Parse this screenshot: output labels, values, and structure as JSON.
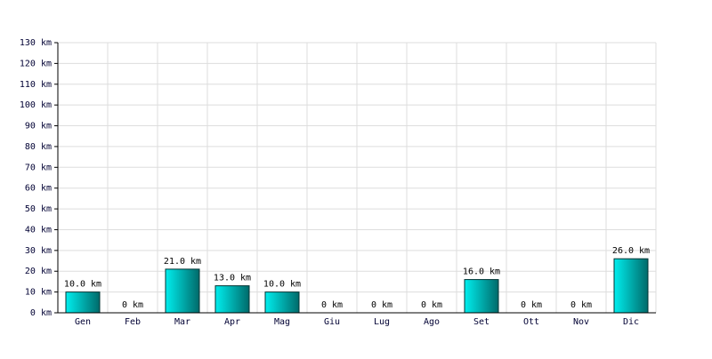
{
  "chart_data": {
    "type": "bar",
    "categories": [
      "Gen",
      "Feb",
      "Mar",
      "Apr",
      "Mag",
      "Giu",
      "Lug",
      "Ago",
      "Set",
      "Ott",
      "Nov",
      "Dic"
    ],
    "values": [
      10,
      0,
      21,
      13,
      10,
      0,
      0,
      0,
      16,
      0,
      0,
      26
    ],
    "value_labels": [
      "10.0 km",
      "0 km",
      "21.0 km",
      "13.0 km",
      "10.0 km",
      "0 km",
      "0 km",
      "0 km",
      "16.0 km",
      "0 km",
      "0 km",
      "26.0 km"
    ],
    "color": "#00eeee",
    "ylim": [
      0,
      130
    ],
    "yticks": [
      {
        "value": 0,
        "label": "0 km"
      },
      {
        "value": 10,
        "label": "10 km"
      },
      {
        "value": 20,
        "label": "20 km"
      },
      {
        "value": 30,
        "label": "30 km"
      },
      {
        "value": 40,
        "label": "40 km"
      },
      {
        "value": 50,
        "label": "50 km"
      },
      {
        "value": 60,
        "label": "60 km"
      },
      {
        "value": 70,
        "label": "70 km"
      },
      {
        "value": 80,
        "label": "80 km"
      },
      {
        "value": 90,
        "label": "90 km"
      },
      {
        "value": 100,
        "label": "100 km"
      },
      {
        "value": 110,
        "label": "110 km"
      },
      {
        "value": 120,
        "label": "120 km"
      },
      {
        "value": 130,
        "label": "130 km"
      }
    ],
    "grid": true
  }
}
